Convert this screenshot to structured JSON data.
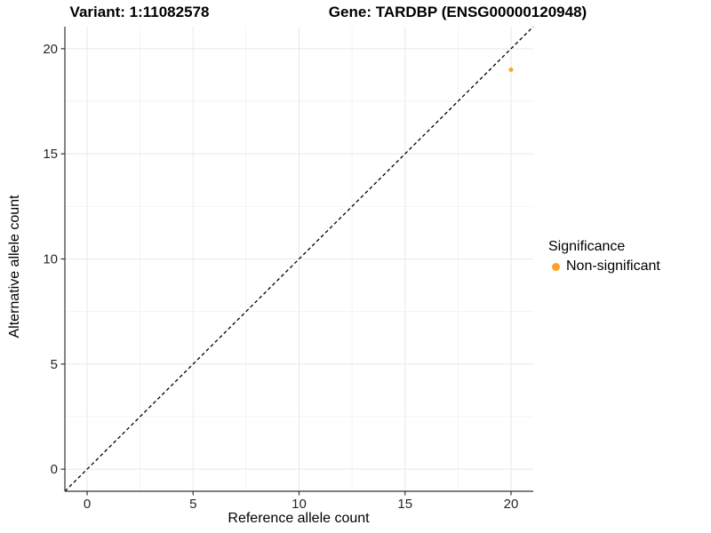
{
  "chart_data": {
    "type": "scatter",
    "title_left": "Variant: 1:11082578",
    "title_right": "Gene: TARDBP (ENSG00000120948)",
    "xlabel": "Reference allele count",
    "ylabel": "Alternative allele count",
    "xlim": [
      -1.05,
      21.05
    ],
    "ylim": [
      -1.05,
      21.05
    ],
    "x_ticks": [
      0,
      5,
      10,
      15,
      20
    ],
    "y_ticks": [
      0,
      5,
      10,
      15,
      20
    ],
    "grid": {
      "major_color": "#E8E8E8",
      "minor_color": "#EFEFEF",
      "minor": true
    },
    "axis_color": "#333333",
    "tick_label_color": "#262626",
    "background": "#FFFFFF",
    "series": [
      {
        "name": "Non-significant",
        "color": "#FBA226",
        "point_radius": 2.5,
        "points": [
          {
            "x": 20,
            "y": 19
          }
        ]
      }
    ],
    "reference_line": {
      "kind": "identity y=x",
      "color": "#000000",
      "dash": "4 3",
      "width": 1.3
    },
    "legend": {
      "title": "Significance",
      "position": "right-middle",
      "items": [
        {
          "label": "Non-significant",
          "color": "#FBA226",
          "marker": "dot"
        }
      ]
    }
  }
}
